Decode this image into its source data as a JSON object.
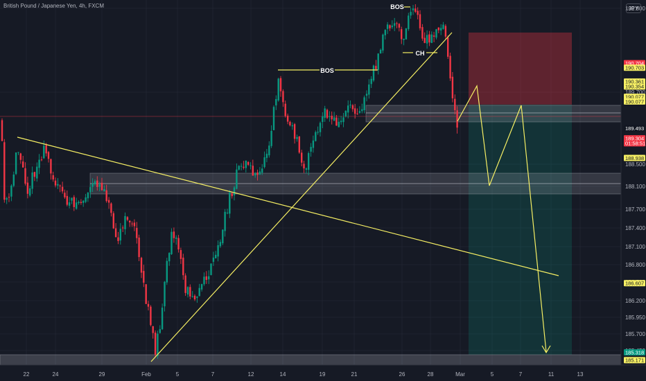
{
  "header": {
    "title": "British Pound / Japanese Yen, 4h, FXCM",
    "currency": "JPY"
  },
  "chart_data": {
    "type": "candlestick",
    "title": "British Pound / Japanese Yen, 4h, FXCM",
    "ylim": [
      185.08,
      191.88
    ],
    "y_ticks": [
      "191.800",
      "189.700",
      "188.500",
      "188.100",
      "187.700",
      "187.400",
      "187.100",
      "186.800",
      "186.500",
      "186.200",
      "185.950",
      "185.700",
      "185.450"
    ],
    "x_ticks": [
      "22",
      "24",
      "29",
      "Feb",
      "5",
      "7",
      "12",
      "14",
      "19",
      "21",
      "26",
      "28",
      "Mar",
      "5",
      "7",
      "11",
      "13"
    ],
    "price_tags": [
      {
        "label": "190.704",
        "price": 190.704,
        "bg": "#f23645",
        "fg": "#ffffff"
      },
      {
        "label": "190.703",
        "price": 190.618,
        "bg": "#f7f064",
        "fg": "#131722"
      },
      {
        "label": "190.361",
        "price": 190.361,
        "bg": "#f7f064",
        "fg": "#131722"
      },
      {
        "label": "190.354",
        "price": 190.268,
        "bg": "#f7f064",
        "fg": "#131722"
      },
      {
        "label": "190.077",
        "price": 190.077,
        "bg": "#f7f064",
        "fg": "#131722"
      },
      {
        "label": "190.077",
        "price": 189.99,
        "bg": "#f7f064",
        "fg": "#131722"
      },
      {
        "label": "189.493",
        "price": 189.493,
        "bg": "#131722",
        "fg": "#ffffff"
      },
      {
        "label": "189.304",
        "price": 189.304,
        "bg": "#f23645",
        "fg": "#ffffff"
      },
      {
        "label": "01:58:51",
        "price": 189.21,
        "bg": "#f23645",
        "fg": "#ffffff"
      },
      {
        "label": "188.938",
        "price": 188.938,
        "bg": "#f7f064",
        "fg": "#131722"
      },
      {
        "label": "186.607",
        "price": 186.607,
        "bg": "#f7f064",
        "fg": "#131722"
      },
      {
        "label": "185.318",
        "price": 185.318,
        "bg": "#089981",
        "fg": "#ffffff"
      },
      {
        "label": "185.171",
        "price": 185.171,
        "bg": "#f7f064",
        "fg": "#131722"
      }
    ],
    "annotations": [
      {
        "label": "BOS",
        "kind": "bos-1"
      },
      {
        "label": "BOS",
        "kind": "bos-2"
      },
      {
        "label": "CH",
        "kind": "choch"
      }
    ],
    "colors": {
      "up": "#089981",
      "down": "#f23645",
      "trendline": "#f7f064",
      "zone": "#b2b5be"
    }
  }
}
